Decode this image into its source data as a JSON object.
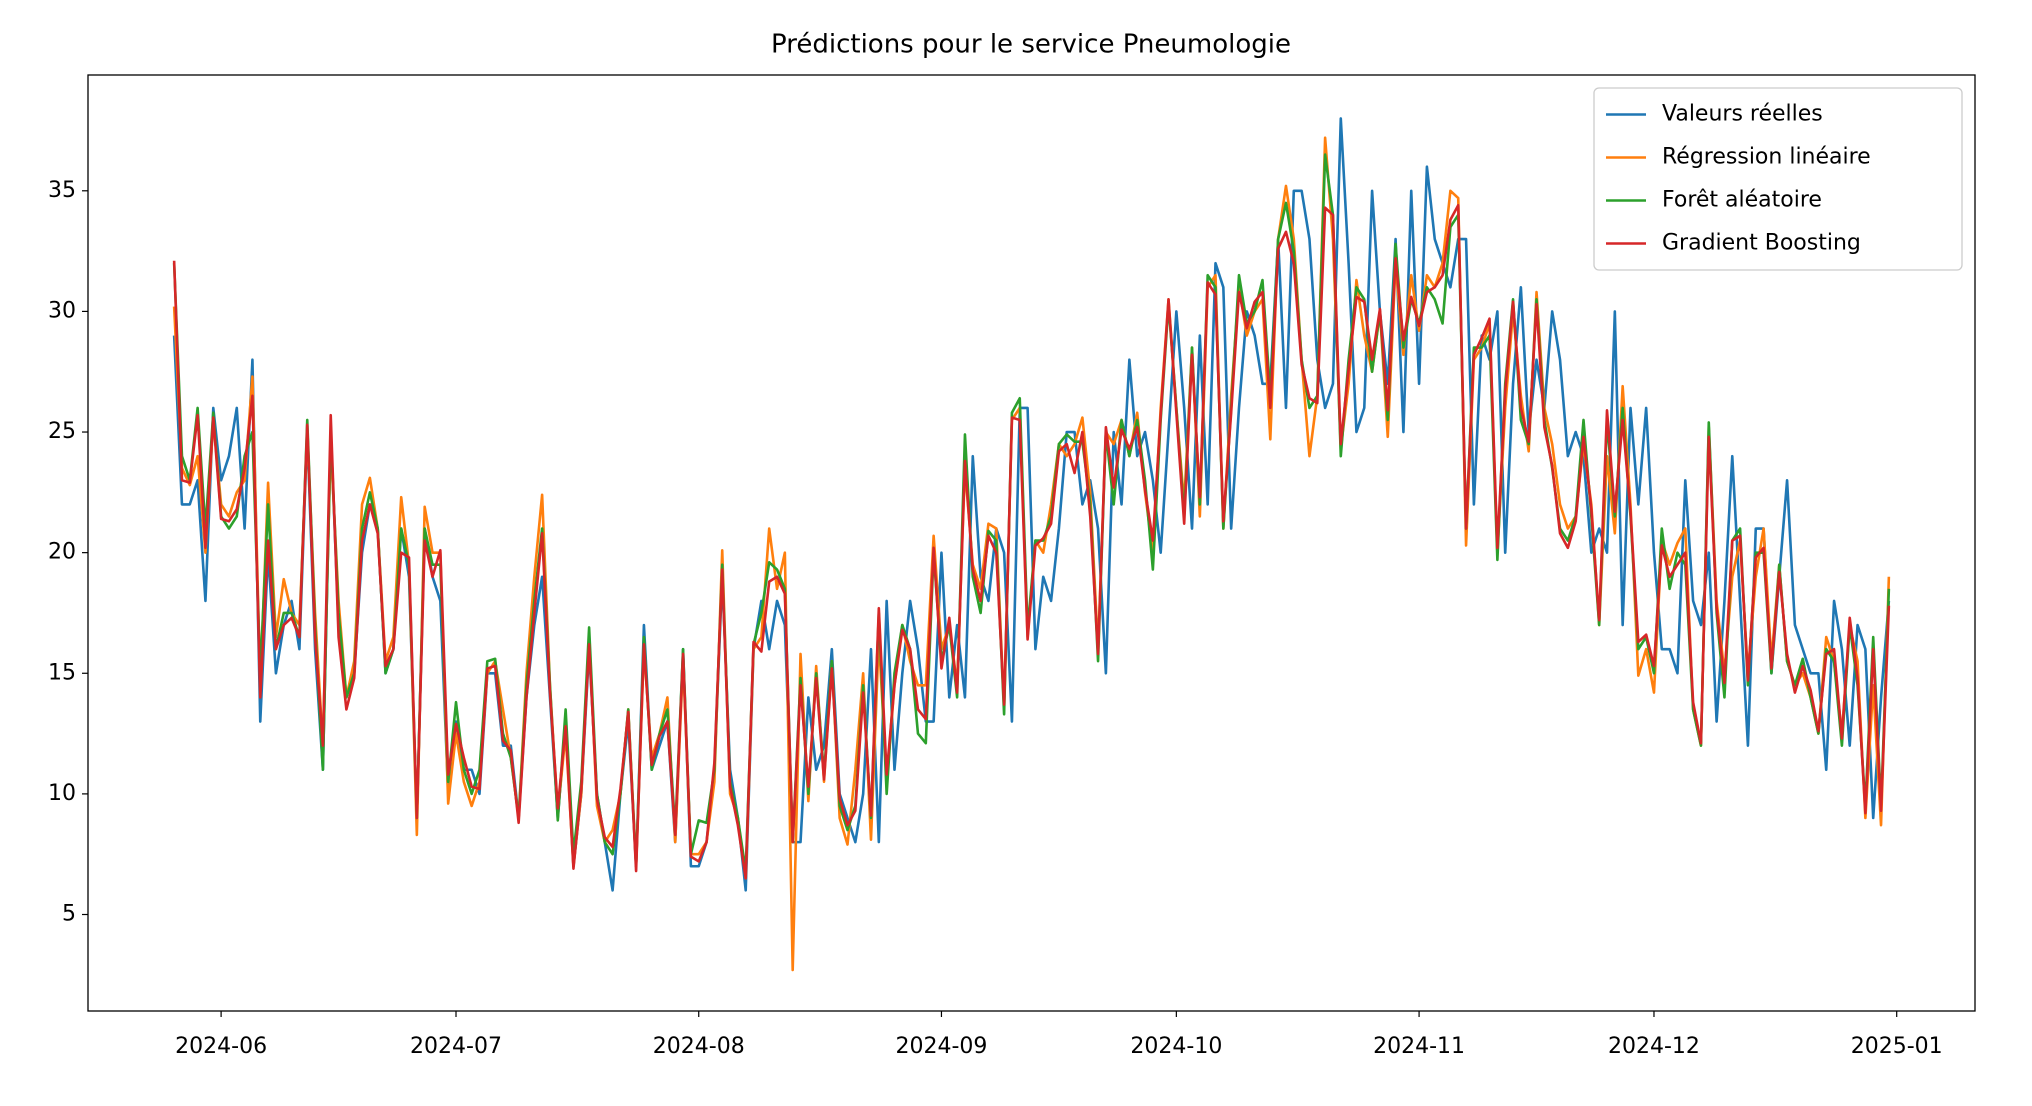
{
  "chart_data": {
    "type": "line",
    "title": "Prédictions pour le service Pneumologie",
    "legend": "upper right",
    "grid": false,
    "xlim": [
      "2024-05-15",
      "2025-01-11"
    ],
    "xticks": [
      {
        "value": "2024-06-01",
        "label": "2024-06"
      },
      {
        "value": "2024-07-01",
        "label": "2024-07"
      },
      {
        "value": "2024-08-01",
        "label": "2024-08"
      },
      {
        "value": "2024-09-01",
        "label": "2024-09"
      },
      {
        "value": "2024-10-01",
        "label": "2024-10"
      },
      {
        "value": "2024-11-01",
        "label": "2024-11"
      },
      {
        "value": "2024-12-01",
        "label": "2024-12"
      },
      {
        "value": "2025-01-01",
        "label": "2025-01"
      }
    ],
    "ylim": [
      1.0,
      39.8
    ],
    "yticks": [
      5,
      10,
      15,
      20,
      25,
      30,
      35
    ],
    "x": [
      "2024-05-26",
      "2024-05-27",
      "2024-05-28",
      "2024-05-29",
      "2024-05-30",
      "2024-05-31",
      "2024-06-01",
      "2024-06-02",
      "2024-06-03",
      "2024-06-04",
      "2024-06-05",
      "2024-06-06",
      "2024-06-07",
      "2024-06-08",
      "2024-06-09",
      "2024-06-10",
      "2024-06-11",
      "2024-06-12",
      "2024-06-13",
      "2024-06-14",
      "2024-06-15",
      "2024-06-16",
      "2024-06-17",
      "2024-06-18",
      "2024-06-19",
      "2024-06-20",
      "2024-06-21",
      "2024-06-22",
      "2024-06-23",
      "2024-06-24",
      "2024-06-25",
      "2024-06-26",
      "2024-06-27",
      "2024-06-28",
      "2024-06-29",
      "2024-06-30",
      "2024-07-01",
      "2024-07-02",
      "2024-07-03",
      "2024-07-04",
      "2024-07-05",
      "2024-07-06",
      "2024-07-07",
      "2024-07-08",
      "2024-07-09",
      "2024-07-10",
      "2024-07-11",
      "2024-07-12",
      "2024-07-13",
      "2024-07-14",
      "2024-07-15",
      "2024-07-16",
      "2024-07-17",
      "2024-07-18",
      "2024-07-19",
      "2024-07-20",
      "2024-07-21",
      "2024-07-22",
      "2024-07-23",
      "2024-07-24",
      "2024-07-25",
      "2024-07-26",
      "2024-07-27",
      "2024-07-28",
      "2024-07-29",
      "2024-07-30",
      "2024-07-31",
      "2024-08-01",
      "2024-08-02",
      "2024-08-03",
      "2024-08-04",
      "2024-08-05",
      "2024-08-06",
      "2024-08-07",
      "2024-08-08",
      "2024-08-09",
      "2024-08-10",
      "2024-08-11",
      "2024-08-12",
      "2024-08-13",
      "2024-08-14",
      "2024-08-15",
      "2024-08-16",
      "2024-08-17",
      "2024-08-18",
      "2024-08-19",
      "2024-08-20",
      "2024-08-21",
      "2024-08-22",
      "2024-08-23",
      "2024-08-24",
      "2024-08-25",
      "2024-08-26",
      "2024-08-27",
      "2024-08-28",
      "2024-08-29",
      "2024-08-30",
      "2024-08-31",
      "2024-09-01",
      "2024-09-02",
      "2024-09-03",
      "2024-09-04",
      "2024-09-05",
      "2024-09-06",
      "2024-09-07",
      "2024-09-08",
      "2024-09-09",
      "2024-09-10",
      "2024-09-11",
      "2024-09-12",
      "2024-09-13",
      "2024-09-14",
      "2024-09-15",
      "2024-09-16",
      "2024-09-17",
      "2024-09-18",
      "2024-09-19",
      "2024-09-20",
      "2024-09-21",
      "2024-09-22",
      "2024-09-23",
      "2024-09-24",
      "2024-09-25",
      "2024-09-26",
      "2024-09-27",
      "2024-09-28",
      "2024-09-29",
      "2024-09-30",
      "2024-10-01",
      "2024-10-02",
      "2024-10-03",
      "2024-10-04",
      "2024-10-05",
      "2024-10-06",
      "2024-10-07",
      "2024-10-08",
      "2024-10-09",
      "2024-10-10",
      "2024-10-11",
      "2024-10-12",
      "2024-10-13",
      "2024-10-14",
      "2024-10-15",
      "2024-10-16",
      "2024-10-17",
      "2024-10-18",
      "2024-10-19",
      "2024-10-20",
      "2024-10-21",
      "2024-10-22",
      "2024-10-23",
      "2024-10-24",
      "2024-10-25",
      "2024-10-26",
      "2024-10-27",
      "2024-10-28",
      "2024-10-29",
      "2024-10-30",
      "2024-10-31",
      "2024-11-01",
      "2024-11-02",
      "2024-11-03",
      "2024-11-04",
      "2024-11-05",
      "2024-11-06",
      "2024-11-07",
      "2024-11-08",
      "2024-11-09",
      "2024-11-10",
      "2024-11-11",
      "2024-11-12",
      "2024-11-13",
      "2024-11-14",
      "2024-11-15",
      "2024-11-16",
      "2024-11-17",
      "2024-11-18",
      "2024-11-19",
      "2024-11-20",
      "2024-11-21",
      "2024-11-22",
      "2024-11-23",
      "2024-11-24",
      "2024-11-25",
      "2024-11-26",
      "2024-11-27",
      "2024-11-28",
      "2024-11-29",
      "2024-11-30",
      "2024-12-01",
      "2024-12-02",
      "2024-12-03",
      "2024-12-04",
      "2024-12-05",
      "2024-12-06",
      "2024-12-07",
      "2024-12-08",
      "2024-12-09",
      "2024-12-10",
      "2024-12-11",
      "2024-12-12",
      "2024-12-13",
      "2024-12-14",
      "2024-12-15",
      "2024-12-16",
      "2024-12-17",
      "2024-12-18",
      "2024-12-19",
      "2024-12-20",
      "2024-12-21",
      "2024-12-22",
      "2024-12-23",
      "2024-12-24",
      "2024-12-25",
      "2024-12-26",
      "2024-12-27",
      "2024-12-28",
      "2024-12-29",
      "2024-12-30",
      "2024-12-31"
    ],
    "series": [
      {
        "name": "Valeurs réelles",
        "color": "#1f77b4",
        "values": [
          29,
          22,
          22,
          23,
          18,
          26,
          23,
          24,
          26,
          21,
          28,
          13,
          20,
          15,
          17,
          18,
          16,
          25,
          16,
          11,
          25,
          17,
          14,
          15,
          20,
          22,
          21,
          15,
          16,
          21,
          19,
          9,
          21,
          19,
          18,
          10,
          13,
          11,
          11,
          10,
          15,
          15,
          12,
          12,
          9,
          14,
          17,
          19,
          14,
          9,
          13,
          7,
          10,
          16,
          10,
          8,
          6,
          10,
          13,
          7,
          17,
          11,
          12,
          13,
          8,
          16,
          7,
          7,
          8,
          11,
          19,
          11,
          9,
          6,
          16,
          18,
          16,
          18,
          17,
          8,
          8,
          14,
          11,
          12,
          16,
          10,
          9,
          8,
          10,
          16,
          8,
          18,
          11,
          15,
          18,
          16,
          13,
          13,
          20,
          14,
          17,
          14,
          24,
          19,
          18,
          21,
          20,
          13,
          26,
          26,
          16,
          19,
          18,
          21,
          25,
          25,
          22,
          23,
          21,
          15,
          25,
          22,
          28,
          24,
          25,
          23,
          20,
          25,
          30,
          26,
          21,
          29,
          22,
          32,
          31,
          21,
          26,
          30,
          29,
          27,
          27,
          33,
          26,
          35,
          35,
          33,
          28,
          26,
          27,
          38,
          32,
          25,
          26,
          35,
          30,
          27,
          33,
          25,
          35,
          27,
          36,
          33,
          32,
          31,
          33,
          33,
          22,
          29,
          28,
          30,
          20,
          27,
          31,
          25,
          28,
          26,
          30,
          28,
          24,
          25,
          24,
          20,
          21,
          20,
          30,
          17,
          26,
          22,
          26,
          20,
          16,
          16,
          15,
          23,
          18,
          17,
          20,
          13,
          18,
          24,
          18,
          12,
          21,
          21,
          15,
          19,
          23,
          17,
          16,
          15,
          15,
          11,
          18,
          16,
          12,
          17,
          16,
          9,
          14,
          18
        ]
      },
      {
        "name": "Régression linéaire",
        "color": "#ff7f0e",
        "values": [
          30.2,
          23.5,
          22.8,
          24.0,
          20.0,
          25.5,
          22.0,
          21.5,
          22.5,
          23.0,
          27.3,
          14.5,
          22.9,
          16.5,
          18.9,
          17.5,
          17.0,
          25.0,
          17.5,
          12.0,
          24.5,
          18.0,
          14.0,
          15.5,
          22.0,
          23.1,
          21.0,
          15.5,
          16.5,
          22.3,
          19.5,
          8.3,
          21.9,
          20.0,
          20.0,
          9.6,
          12.5,
          10.5,
          9.5,
          10.5,
          15.0,
          15.5,
          13.5,
          11.5,
          9.0,
          15.0,
          19.0,
          22.4,
          14.5,
          9.2,
          12.5,
          7.0,
          10.0,
          16.5,
          9.5,
          8.0,
          8.5,
          10.0,
          13.5,
          7.0,
          16.0,
          11.5,
          12.5,
          14.0,
          8.0,
          15.5,
          7.5,
          7.5,
          8.0,
          10.5,
          20.1,
          10.0,
          9.0,
          6.5,
          16.0,
          16.5,
          21.0,
          18.5,
          20.0,
          2.7,
          15.8,
          9.7,
          15.3,
          10.5,
          15.5,
          9.0,
          7.9,
          11.0,
          15.0,
          8.1,
          16.5,
          10.5,
          14.5,
          17.0,
          15.5,
          14.5,
          14.5,
          20.7,
          16.0,
          17.0,
          14.5,
          23.5,
          19.5,
          18.5,
          21.2,
          21.0,
          13.5,
          25.5,
          26.0,
          16.5,
          20.5,
          20.0,
          22.0,
          24.5,
          24.0,
          24.5,
          25.6,
          22.5,
          16.0,
          25.0,
          24.5,
          25.5,
          24.0,
          25.8,
          22.5,
          20.0,
          26.0,
          30.5,
          26.0,
          22.0,
          28.5,
          21.5,
          31.0,
          31.5,
          21.0,
          26.5,
          31.0,
          29.0,
          30.0,
          30.5,
          24.7,
          33.0,
          35.2,
          33.0,
          28.0,
          24.0,
          26.5,
          37.2,
          33.0,
          24.3,
          27.0,
          31.3,
          29.0,
          27.5,
          30.0,
          24.8,
          32.0,
          28.2,
          31.5,
          29.2,
          31.5,
          31.0,
          32.0,
          35.0,
          34.7,
          20.3,
          28.0,
          28.5,
          29.5,
          20.0,
          26.0,
          30.0,
          26.5,
          24.2,
          30.8,
          26.0,
          24.5,
          22.0,
          21.0,
          21.5,
          24.5,
          22.0,
          17.0,
          24.0,
          20.8,
          26.9,
          22.0,
          14.9,
          16.0,
          14.2,
          20.5,
          19.5,
          20.4,
          21.0,
          13.5,
          12.0,
          25.2,
          18.0,
          15.0,
          19.0,
          20.5,
          15.0,
          19.0,
          21.0,
          15.5,
          19.5,
          15.5,
          14.5,
          15.0,
          14.0,
          12.5,
          16.5,
          15.5,
          12.5,
          17.0,
          15.5,
          9.0,
          14.5,
          8.7,
          19.0
        ]
      },
      {
        "name": "Forêt aléatoire",
        "color": "#2ca02c",
        "values": [
          32.0,
          24.0,
          23.0,
          26.0,
          21.0,
          25.8,
          21.5,
          21.0,
          21.5,
          24.0,
          25.0,
          15.0,
          22.0,
          16.0,
          17.5,
          17.5,
          16.5,
          25.5,
          17.0,
          11.0,
          25.0,
          17.5,
          14.0,
          15.0,
          21.0,
          22.5,
          21.0,
          15.0,
          16.0,
          21.0,
          19.5,
          9.0,
          21.0,
          19.5,
          19.5,
          10.5,
          13.8,
          11.0,
          10.0,
          11.0,
          15.5,
          15.6,
          12.5,
          11.5,
          9.0,
          14.5,
          18.0,
          21.0,
          14.5,
          8.9,
          13.5,
          7.5,
          10.5,
          16.9,
          10.0,
          8.0,
          7.5,
          10.0,
          13.5,
          7.0,
          16.5,
          11.0,
          12.5,
          13.5,
          8.5,
          16.0,
          7.5,
          8.9,
          8.8,
          11.0,
          19.5,
          10.5,
          9.0,
          6.8,
          16.2,
          17.5,
          19.6,
          19.3,
          18.5,
          8.0,
          14.8,
          10.0,
          15.0,
          10.8,
          15.5,
          9.5,
          8.5,
          9.5,
          14.5,
          9.0,
          17.5,
          10.0,
          15.0,
          17.0,
          16.0,
          12.5,
          12.1,
          20.0,
          15.5,
          17.0,
          14.0,
          24.9,
          19.0,
          17.5,
          20.9,
          20.5,
          13.3,
          25.8,
          26.4,
          16.8,
          20.5,
          20.5,
          21.5,
          24.5,
          24.9,
          24.6,
          24.6,
          22.0,
          15.5,
          25.0,
          22.0,
          25.5,
          24.0,
          25.5,
          23.0,
          19.3,
          25.5,
          30.3,
          26.0,
          21.5,
          28.5,
          22.0,
          31.5,
          31.0,
          21.0,
          26.0,
          31.5,
          29.5,
          30.0,
          31.3,
          26.5,
          33.0,
          34.5,
          32.5,
          28.0,
          26.0,
          26.5,
          36.5,
          34.0,
          24.0,
          28.0,
          31.0,
          30.5,
          27.5,
          30.0,
          25.5,
          32.8,
          28.5,
          30.5,
          29.5,
          31.0,
          30.5,
          29.5,
          33.5,
          34.0,
          21.0,
          28.5,
          28.5,
          29.0,
          19.7,
          27.0,
          30.5,
          25.5,
          24.5,
          30.5,
          25.5,
          23.5,
          21.0,
          20.5,
          21.5,
          25.5,
          21.5,
          17.0,
          25.5,
          21.5,
          26.0,
          21.5,
          16.0,
          16.5,
          15.0,
          21.0,
          18.5,
          20.0,
          19.5,
          13.5,
          12.0,
          25.4,
          17.5,
          14.0,
          20.5,
          21.0,
          14.5,
          20.0,
          20.0,
          15.0,
          19.5,
          15.5,
          14.5,
          15.6,
          14.0,
          12.5,
          16.0,
          15.5,
          12.0,
          17.0,
          14.5,
          9.5,
          16.5,
          9.5,
          18.5
        ]
      },
      {
        "name": "Gradient Boosting",
        "color": "#d62728",
        "values": [
          32.1,
          23.0,
          22.9,
          25.7,
          20.2,
          25.6,
          21.4,
          21.3,
          21.8,
          23.5,
          26.5,
          14.0,
          20.5,
          16.0,
          17.0,
          17.3,
          16.5,
          25.3,
          16.5,
          12.0,
          25.7,
          16.5,
          13.5,
          14.8,
          20.5,
          22.0,
          20.8,
          15.3,
          16.0,
          20.0,
          19.8,
          9.0,
          20.5,
          19.0,
          20.1,
          10.8,
          12.9,
          11.5,
          10.3,
          10.2,
          15.2,
          15.3,
          12.2,
          11.8,
          8.8,
          14.0,
          17.5,
          20.8,
          14.2,
          9.4,
          12.8,
          6.9,
          10.2,
          16.2,
          9.8,
          8.2,
          7.8,
          10.2,
          13.4,
          6.8,
          16.2,
          11.2,
          12.4,
          13.0,
          8.3,
          15.8,
          7.4,
          7.2,
          8.0,
          11.3,
          19.3,
          10.3,
          8.7,
          6.5,
          16.3,
          15.9,
          18.8,
          19.0,
          18.3,
          8.0,
          14.5,
          10.3,
          14.8,
          10.6,
          15.2,
          9.8,
          8.7,
          9.3,
          14.2,
          9.1,
          17.7,
          10.8,
          14.5,
          16.8,
          16.0,
          13.5,
          13.1,
          20.2,
          15.2,
          17.3,
          14.2,
          23.8,
          19.3,
          18.0,
          20.7,
          20.0,
          13.7,
          25.6,
          25.5,
          16.4,
          20.3,
          20.6,
          21.2,
          24.2,
          24.5,
          23.3,
          25.0,
          21.5,
          15.8,
          25.2,
          22.7,
          25.1,
          24.3,
          25.2,
          22.6,
          20.5,
          25.7,
          30.5,
          25.8,
          21.2,
          28.2,
          22.3,
          31.2,
          30.7,
          21.3,
          25.8,
          30.8,
          29.3,
          30.4,
          30.8,
          26.0,
          32.6,
          33.3,
          32.0,
          27.8,
          26.4,
          26.2,
          34.3,
          34.0,
          24.5,
          27.6,
          30.6,
          30.4,
          28.0,
          30.1,
          25.9,
          32.2,
          28.8,
          30.6,
          29.4,
          30.8,
          31.0,
          31.5,
          33.8,
          34.4,
          21.0,
          28.2,
          28.9,
          29.7,
          20.2,
          26.7,
          30.4,
          26.0,
          24.6,
          30.3,
          25.2,
          23.6,
          20.8,
          20.2,
          21.3,
          24.8,
          21.8,
          17.2,
          25.9,
          21.7,
          25.5,
          21.7,
          16.3,
          16.6,
          15.3,
          20.3,
          19.0,
          19.5,
          20.0,
          13.8,
          12.1,
          24.8,
          17.7,
          14.6,
          20.5,
          20.7,
          14.7,
          19.8,
          20.2,
          15.2,
          19.2,
          15.8,
          14.2,
          15.3,
          14.3,
          12.6,
          15.8,
          16.0,
          12.3,
          17.3,
          14.8,
          9.2,
          16.0,
          9.3,
          17.8
        ]
      }
    ]
  }
}
